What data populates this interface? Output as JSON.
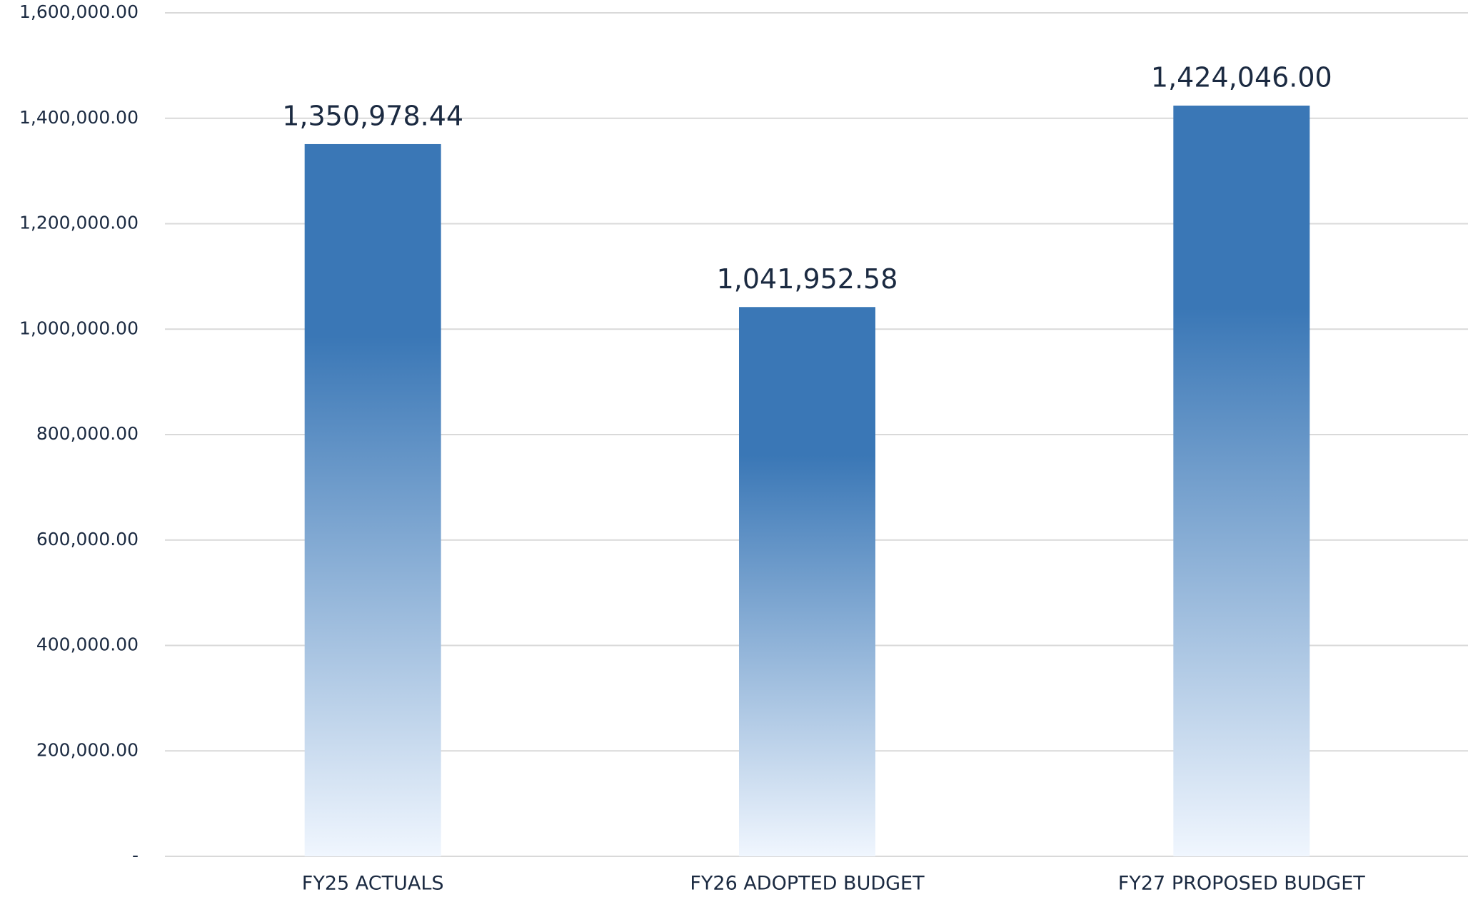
{
  "chart_data": {
    "type": "bar",
    "categories": [
      "FY25 ACTUALS",
      "FY26 ADOPTED BUDGET",
      "FY27 PROPOSED BUDGET"
    ],
    "values": [
      1350978.44,
      1041952.58,
      1424046.0
    ],
    "value_labels": [
      "1,350,978.44",
      "1,041,952.58",
      "1,424,046.00"
    ],
    "color": "#3a77b6",
    "ylim": [
      0,
      1600000
    ],
    "yticks": [
      {
        "value": 0,
        "label": "-"
      },
      {
        "value": 200000,
        "label": "200,000.00"
      },
      {
        "value": 400000,
        "label": "400,000.00"
      },
      {
        "value": 600000,
        "label": "600,000.00"
      },
      {
        "value": 800000,
        "label": "800,000.00"
      },
      {
        "value": 1000000,
        "label": "1,000,000.00"
      },
      {
        "value": 1200000,
        "label": "1,200,000.00"
      },
      {
        "value": 1400000,
        "label": "1,400,000.00"
      },
      {
        "value": 1600000,
        "label": "1,600,000.00"
      }
    ],
    "grid": true
  }
}
